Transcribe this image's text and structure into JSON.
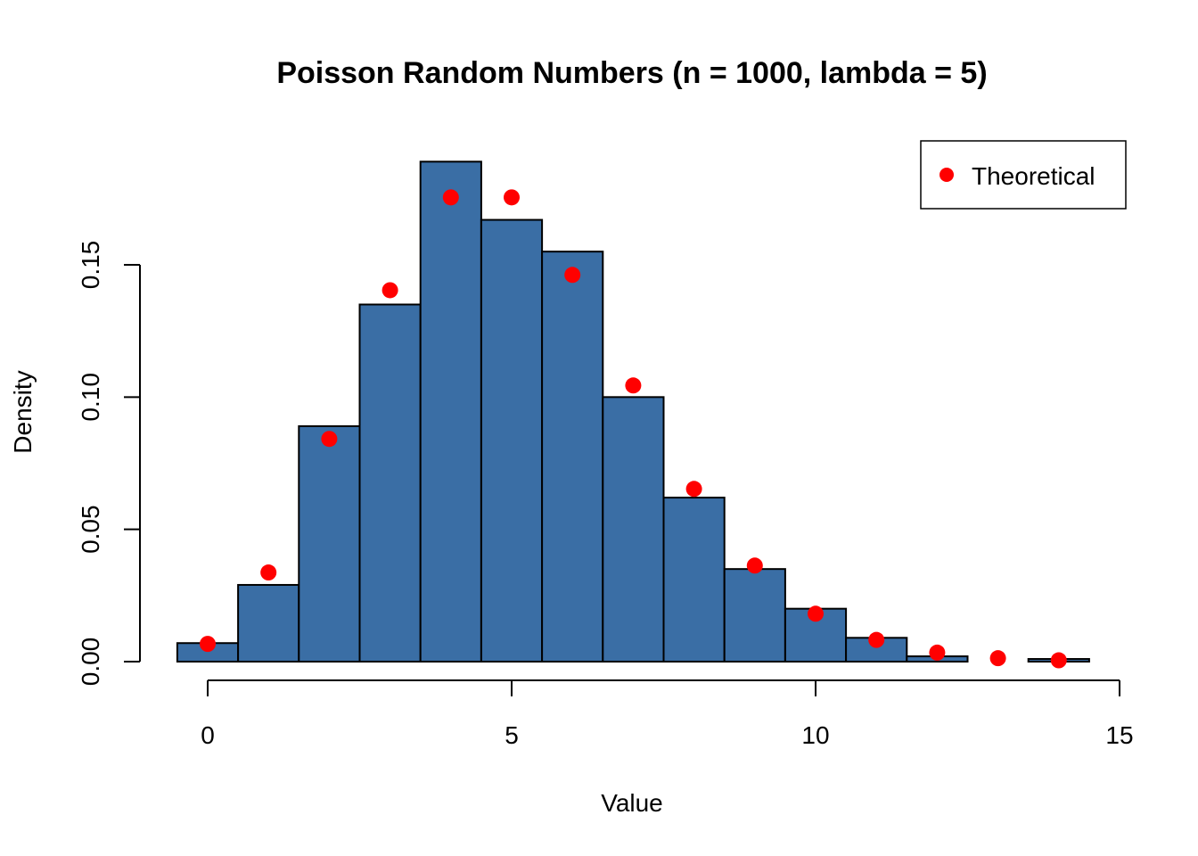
{
  "chart_data": {
    "type": "bar",
    "title": "Poisson Random Numbers (n = 1000, lambda = 5)",
    "xlabel": "Value",
    "ylabel": "Density",
    "xlim": [
      -0.5,
      15
    ],
    "ylim": [
      0,
      0.19
    ],
    "x_ticks": [
      0,
      5,
      10,
      15
    ],
    "x_tick_labels": [
      "0",
      "5",
      "10",
      "15"
    ],
    "y_ticks": [
      0,
      0.05,
      0.1,
      0.15
    ],
    "y_tick_labels": [
      "0.00",
      "0.05",
      "0.10",
      "0.15"
    ],
    "grid": false,
    "bins": [
      {
        "from": -0.5,
        "to": 0.5,
        "density": 0.007
      },
      {
        "from": 0.5,
        "to": 1.5,
        "density": 0.029
      },
      {
        "from": 1.5,
        "to": 2.5,
        "density": 0.089
      },
      {
        "from": 2.5,
        "to": 3.5,
        "density": 0.135
      },
      {
        "from": 3.5,
        "to": 4.5,
        "density": 0.189
      },
      {
        "from": 4.5,
        "to": 5.5,
        "density": 0.167
      },
      {
        "from": 5.5,
        "to": 6.5,
        "density": 0.155
      },
      {
        "from": 6.5,
        "to": 7.5,
        "density": 0.1
      },
      {
        "from": 7.5,
        "to": 8.5,
        "density": 0.062
      },
      {
        "from": 8.5,
        "to": 9.5,
        "density": 0.035
      },
      {
        "from": 9.5,
        "to": 10.5,
        "density": 0.02
      },
      {
        "from": 10.5,
        "to": 11.5,
        "density": 0.009
      },
      {
        "from": 11.5,
        "to": 12.5,
        "density": 0.002
      },
      {
        "from": 12.5,
        "to": 13.5,
        "density": 0.0
      },
      {
        "from": 13.5,
        "to": 14.5,
        "density": 0.001
      }
    ],
    "series": [
      {
        "name": "Theoretical",
        "type": "scatter",
        "color": "#ff0000",
        "x": [
          0,
          1,
          2,
          3,
          4,
          5,
          6,
          7,
          8,
          9,
          10,
          11,
          12,
          13,
          14
        ],
        "y": [
          0.0067,
          0.0337,
          0.0842,
          0.1404,
          0.1755,
          0.1755,
          0.1462,
          0.1044,
          0.0653,
          0.0363,
          0.0181,
          0.0082,
          0.0034,
          0.0013,
          0.0005
        ]
      }
    ],
    "bar_color": "#3a6ea5",
    "bar_edge_color": "#000000",
    "legend": {
      "position": "top-right",
      "entries": [
        "Theoretical"
      ]
    }
  }
}
